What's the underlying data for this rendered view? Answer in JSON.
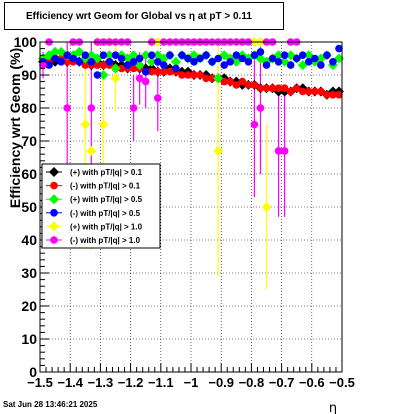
{
  "chart_data": {
    "type": "scatter",
    "title": "Efficiency wrt Geom for Global vs   η  at pT > 0.11",
    "xlabel": "η",
    "ylabel": "Efficiency wrt Geom (%)",
    "xlim": [
      -1.5,
      -0.5
    ],
    "ylim": [
      0,
      100
    ],
    "x_ticks": [
      "−1.5",
      "−1.4",
      "−1.3",
      "−1.2",
      "−1.1",
      "−1",
      "−0.9",
      "−0.8",
      "−0.7",
      "−0.6",
      "−0.5"
    ],
    "y_ticks": [
      "0",
      "10",
      "20",
      "30",
      "40",
      "50",
      "60",
      "70",
      "80",
      "90",
      "100"
    ],
    "grid": true,
    "legend_position": "center-left",
    "timestamp": "Sat Jun 28 13:46:21 2025",
    "series": [
      {
        "name": "(+) with pT/|q| > 0.1",
        "color": "#000000",
        "marker": "diamond",
        "x": [
          -1.49,
          -1.47,
          -1.45,
          -1.43,
          -1.41,
          -1.39,
          -1.37,
          -1.35,
          -1.33,
          -1.31,
          -1.29,
          -1.27,
          -1.25,
          -1.23,
          -1.21,
          -1.19,
          -1.17,
          -1.15,
          -1.13,
          -1.11,
          -1.09,
          -1.07,
          -1.05,
          -1.03,
          -1.01,
          -0.99,
          -0.97,
          -0.95,
          -0.93,
          -0.91,
          -0.89,
          -0.87,
          -0.85,
          -0.83,
          -0.81,
          -0.79,
          -0.77,
          -0.75,
          -0.73,
          -0.71,
          -0.69,
          -0.67,
          -0.65,
          -0.63,
          -0.61,
          -0.59,
          -0.57,
          -0.55,
          -0.53,
          -0.51
        ],
        "y": [
          94,
          95,
          94,
          95,
          94,
          95,
          94,
          94,
          93,
          94,
          93,
          94,
          93,
          93,
          92,
          93,
          92,
          92,
          92,
          91,
          91,
          92,
          91,
          91,
          91,
          90,
          90,
          90,
          89,
          89,
          89,
          88,
          88,
          87,
          87,
          87,
          86,
          86,
          86,
          85,
          85,
          85,
          86,
          86,
          85,
          85,
          85,
          84,
          85,
          85
        ],
        "err": [
          0,
          0,
          0,
          0,
          0,
          0,
          0,
          0,
          0,
          0,
          0,
          0,
          0,
          0,
          0,
          0,
          0,
          0,
          0,
          0,
          0,
          0,
          0,
          0,
          0,
          0,
          0,
          0,
          0,
          0,
          0,
          0,
          0,
          0,
          0,
          0,
          0,
          0,
          0,
          0,
          0,
          0,
          0,
          0,
          0,
          0,
          0,
          0,
          0,
          0
        ]
      },
      {
        "name": "(-) with pT/|q| > 0.1",
        "color": "#ff0000",
        "marker": "circle",
        "x": [
          -1.49,
          -1.47,
          -1.45,
          -1.43,
          -1.41,
          -1.39,
          -1.37,
          -1.35,
          -1.33,
          -1.31,
          -1.29,
          -1.27,
          -1.25,
          -1.23,
          -1.21,
          -1.19,
          -1.17,
          -1.15,
          -1.13,
          -1.11,
          -1.09,
          -1.07,
          -1.05,
          -1.03,
          -1.01,
          -0.99,
          -0.97,
          -0.95,
          -0.93,
          -0.91,
          -0.89,
          -0.87,
          -0.85,
          -0.83,
          -0.81,
          -0.79,
          -0.77,
          -0.75,
          -0.73,
          -0.71,
          -0.69,
          -0.67,
          -0.65,
          -0.63,
          -0.61,
          -0.59,
          -0.57,
          -0.55,
          -0.53,
          -0.51
        ],
        "y": [
          95,
          94,
          95,
          95,
          94,
          94,
          94,
          93,
          93,
          93,
          93,
          93,
          92,
          92,
          92,
          92,
          92,
          91,
          91,
          91,
          91,
          91,
          91,
          90,
          90,
          90,
          90,
          89,
          89,
          89,
          88,
          88,
          87,
          88,
          87,
          87,
          86,
          86,
          86,
          86,
          86,
          85,
          86,
          85,
          85,
          85,
          85,
          84,
          84,
          84
        ],
        "err": [
          0,
          0,
          0,
          0,
          0,
          0,
          0,
          0,
          0,
          0,
          0,
          0,
          0,
          0,
          0,
          0,
          0,
          0,
          0,
          0,
          0,
          0,
          0,
          0,
          0,
          0,
          0,
          0,
          0,
          0,
          0,
          0,
          0,
          0,
          0,
          0,
          0,
          0,
          0,
          0,
          0,
          0,
          0,
          0,
          0,
          0,
          0,
          0,
          0,
          0
        ]
      },
      {
        "name": "(+) with pT/|q| > 0.5",
        "color": "#00ff00",
        "marker": "diamond",
        "x": [
          -1.49,
          -1.47,
          -1.45,
          -1.43,
          -1.41,
          -1.39,
          -1.37,
          -1.35,
          -1.33,
          -1.31,
          -1.29,
          -1.27,
          -1.25,
          -1.23,
          -1.21,
          -1.19,
          -1.17,
          -1.15,
          -1.13,
          -1.11,
          -1.09,
          -1.07,
          -1.05,
          -1.03,
          -1.01,
          -0.99,
          -0.97,
          -0.95,
          -0.93,
          -0.91,
          -0.89,
          -0.87,
          -0.85,
          -0.83,
          -0.81,
          -0.79,
          -0.77,
          -0.75,
          -0.73,
          -0.71,
          -0.69,
          -0.67,
          -0.65,
          -0.63,
          -0.61,
          -0.59,
          -0.57,
          -0.55,
          -0.53,
          -0.51
        ],
        "y": [
          95,
          96,
          97,
          97,
          96,
          96,
          97,
          95,
          96,
          95,
          90,
          96,
          92,
          96,
          95,
          96,
          93,
          96,
          94,
          96,
          95,
          96,
          94,
          96,
          95,
          96,
          95,
          96,
          94,
          89,
          96,
          95,
          94,
          96,
          95,
          96,
          95,
          94,
          95,
          96,
          94,
          96,
          95,
          93,
          96,
          94,
          95,
          96,
          93,
          95
        ],
        "err": [
          0,
          0,
          0,
          0,
          0,
          0,
          0,
          0,
          0,
          0,
          0,
          0,
          0,
          0,
          0,
          0,
          0,
          0,
          0,
          0,
          0,
          0,
          0,
          0,
          0,
          0,
          0,
          0,
          0,
          0,
          0,
          0,
          0,
          0,
          0,
          0,
          0,
          0,
          0,
          0,
          0,
          0,
          0,
          0,
          0,
          0,
          0,
          0,
          0,
          0
        ]
      },
      {
        "name": "(-) with pT/|q| > 0.5",
        "color": "#0000ff",
        "marker": "circle",
        "x": [
          -1.49,
          -1.47,
          -1.45,
          -1.43,
          -1.41,
          -1.39,
          -1.37,
          -1.35,
          -1.33,
          -1.31,
          -1.29,
          -1.27,
          -1.25,
          -1.23,
          -1.21,
          -1.19,
          -1.17,
          -1.15,
          -1.13,
          -1.11,
          -1.09,
          -1.07,
          -1.05,
          -1.03,
          -1.01,
          -0.99,
          -0.97,
          -0.95,
          -0.93,
          -0.91,
          -0.89,
          -0.87,
          -0.85,
          -0.83,
          -0.81,
          -0.79,
          -0.77,
          -0.75,
          -0.73,
          -0.71,
          -0.69,
          -0.67,
          -0.65,
          -0.63,
          -0.61,
          -0.59,
          -0.57,
          -0.55,
          -0.53,
          -0.51
        ],
        "y": [
          94,
          93,
          95,
          94,
          96,
          95,
          94,
          96,
          94,
          90,
          96,
          94,
          96,
          95,
          93,
          94,
          95,
          91,
          96,
          94,
          93,
          96,
          92,
          96,
          95,
          94,
          95,
          96,
          94,
          95,
          93,
          94,
          96,
          95,
          94,
          96,
          97,
          93,
          95,
          94,
          96,
          93,
          95,
          96,
          94,
          95,
          93,
          96,
          94,
          98
        ],
        "err": [
          0,
          0,
          0,
          0,
          0,
          0,
          0,
          0,
          0,
          0,
          0,
          0,
          0,
          0,
          0,
          0,
          0,
          0,
          0,
          0,
          0,
          0,
          0,
          0,
          0,
          0,
          0,
          0,
          0,
          0,
          0,
          0,
          0,
          0,
          0,
          0,
          0,
          0,
          0,
          0,
          0,
          0,
          0,
          0,
          0,
          0,
          0,
          0,
          0,
          0
        ]
      },
      {
        "name": "(+) with pT/|q| > 1.0",
        "color": "#ffff00",
        "marker": "diamond",
        "x": [
          -1.35,
          -1.33,
          -1.31,
          -1.29,
          -1.27,
          -1.25,
          -1.13,
          -1.11,
          -0.91,
          -0.79,
          -0.77,
          -0.75
        ],
        "y": [
          75,
          67,
          100,
          75,
          100,
          89,
          100,
          100,
          67,
          100,
          100,
          50
        ],
        "err": [
          20,
          30,
          0,
          18,
          0,
          10,
          0,
          0,
          38,
          0,
          0,
          25
        ]
      },
      {
        "name": "(-) with pT/|q| > 1.0",
        "color": "#ff00ff",
        "marker": "circle",
        "x": [
          -1.49,
          -1.47,
          -1.41,
          -1.39,
          -1.37,
          -1.33,
          -1.31,
          -1.29,
          -1.27,
          -1.25,
          -1.23,
          -1.21,
          -1.19,
          -1.17,
          -1.15,
          -1.13,
          -1.11,
          -1.09,
          -1.07,
          -1.05,
          -1.03,
          -1.01,
          -0.99,
          -0.97,
          -0.95,
          -0.93,
          -0.91,
          -0.89,
          -0.87,
          -0.85,
          -0.83,
          -0.81,
          -0.79,
          -0.77,
          -0.75,
          -0.73,
          -0.71,
          -0.69,
          -0.67,
          -0.65
        ],
        "y": [
          93,
          100,
          80,
          100,
          100,
          80,
          100,
          100,
          100,
          100,
          100,
          100,
          80,
          89,
          88,
          100,
          83,
          100,
          100,
          100,
          100,
          100,
          100,
          100,
          100,
          100,
          100,
          100,
          100,
          100,
          100,
          100,
          75,
          80,
          100,
          100,
          67,
          67,
          100,
          100
        ],
        "err": [
          4,
          0,
          25,
          0,
          0,
          30,
          0,
          0,
          0,
          0,
          0,
          0,
          10,
          8,
          8,
          0,
          10,
          0,
          0,
          0,
          0,
          0,
          0,
          0,
          0,
          0,
          0,
          0,
          0,
          0,
          0,
          0,
          22,
          20,
          0,
          0,
          20,
          20,
          0,
          0
        ]
      }
    ]
  }
}
